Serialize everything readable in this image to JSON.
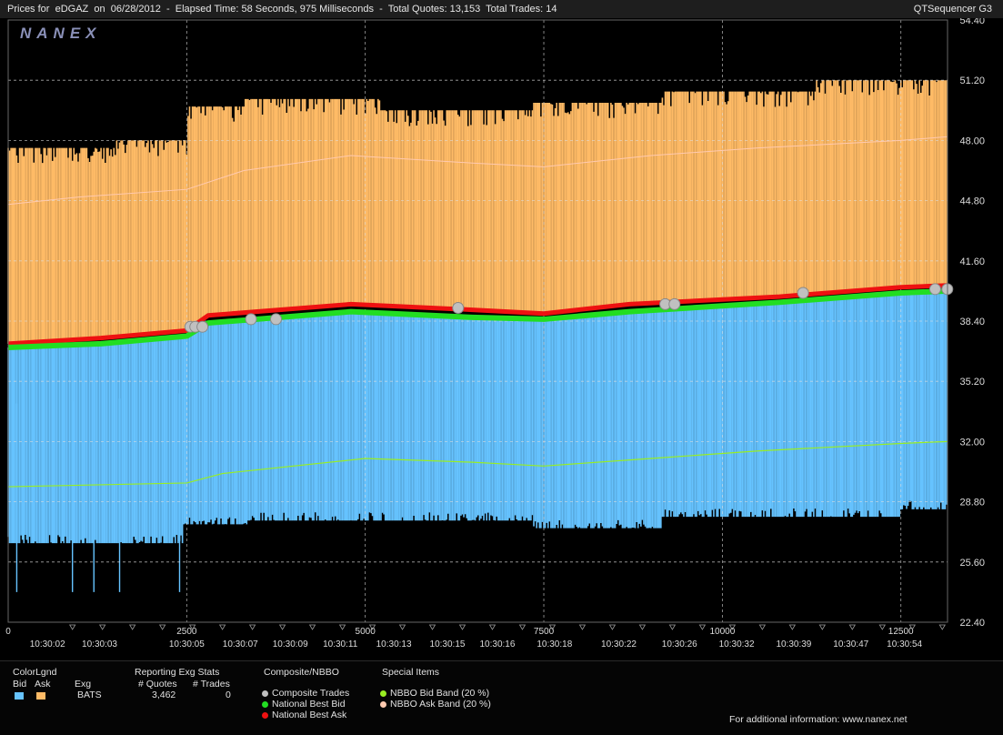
{
  "header": {
    "symbol_prefix": "Prices for",
    "symbol": "eDGAZ",
    "date_prefix": "on",
    "date": "06/28/2012",
    "elapsed": "Elapsed Time: 58 Seconds, 975 Milliseconds",
    "quotes": "Total Quotes: 13,153",
    "trades": "Total Trades: 14",
    "app_name": "QTSequencer G3"
  },
  "chart_data": {
    "type": "bar",
    "logo": "NANEX",
    "ylim": [
      22.4,
      54.4
    ],
    "y_ticks": [
      "54.40",
      "51.20",
      "48.00",
      "44.80",
      "41.60",
      "38.40",
      "35.20",
      "32.00",
      "28.80",
      "25.60",
      "22.40"
    ],
    "x_count_ticks": [
      "0",
      "2500",
      "5000",
      "7500",
      "10000",
      "12500"
    ],
    "x_count_values": [
      0,
      2500,
      5000,
      7500,
      10000,
      12500
    ],
    "x_time_labels": [
      {
        "label": "10:30:02",
        "at": 550
      },
      {
        "label": "10:30:03",
        "at": 1280
      },
      {
        "label": "10:30:05",
        "at": 2500
      },
      {
        "label": "10:30:07",
        "at": 3250
      },
      {
        "label": "10:30:09",
        "at": 3950
      },
      {
        "label": "10:30:11",
        "at": 4650
      },
      {
        "label": "10:30:13",
        "at": 5400
      },
      {
        "label": "10:30:15",
        "at": 6150
      },
      {
        "label": "10:30:16",
        "at": 6850
      },
      {
        "label": "10:30:18",
        "at": 7650
      },
      {
        "label": "10:30:22",
        "at": 8550
      },
      {
        "label": "10:30:26",
        "at": 9400
      },
      {
        "label": "10:30:32",
        "at": 10200
      },
      {
        "label": "10:30:39",
        "at": 11000
      },
      {
        "label": "10:30:47",
        "at": 11800
      },
      {
        "label": "10:30:54",
        "at": 12550
      }
    ],
    "x_max": 13153,
    "series": [
      {
        "name": "Composite Trades",
        "color": "#c0c0c0",
        "x": [
          2550,
          2620,
          2720,
          3400,
          3750,
          6300,
          9200,
          9330,
          11130,
          12980,
          13150
        ],
        "y": [
          38.1,
          38.1,
          38.1,
          38.5,
          38.5,
          39.1,
          39.3,
          39.3,
          39.9,
          40.1,
          40.1
        ]
      },
      {
        "name": "National Best Bid",
        "color": "#22dd22",
        "x": [
          0,
          1300,
          2500,
          2800,
          4800,
          6500,
          7500,
          8700,
          10800,
          12500,
          13153
        ],
        "y": [
          37.0,
          37.2,
          37.6,
          38.3,
          38.9,
          38.6,
          38.5,
          38.9,
          39.4,
          39.9,
          40.0
        ]
      },
      {
        "name": "National Best Ask",
        "color": "#ee1111",
        "x": [
          0,
          1300,
          2500,
          2800,
          4800,
          6500,
          7500,
          8700,
          10800,
          12500,
          13153
        ],
        "y": [
          37.2,
          37.5,
          37.9,
          38.7,
          39.3,
          39.0,
          38.8,
          39.3,
          39.7,
          40.2,
          40.3
        ]
      },
      {
        "name": "NBBO Bid Band (20 %)",
        "color": "#99ee22",
        "x": [
          0,
          2500,
          3000,
          5000,
          6500,
          7500,
          9000,
          10500,
          12500,
          13153
        ],
        "y": [
          29.6,
          29.8,
          30.3,
          31.1,
          30.9,
          30.7,
          31.1,
          31.5,
          31.9,
          32.0
        ]
      },
      {
        "name": "NBBO Ask Band (20 %)",
        "color": "#ffcab0",
        "x": [
          0,
          1000,
          2500,
          3300,
          4800,
          6500,
          7500,
          9000,
          10500,
          12500,
          13153
        ],
        "y": [
          44.6,
          45.0,
          45.4,
          46.4,
          47.2,
          46.8,
          46.6,
          47.2,
          47.6,
          48.0,
          48.2
        ]
      }
    ],
    "bid_bars": {
      "color": "#66c3ff",
      "segments": [
        {
          "x0": 0,
          "x1": 2450,
          "y": 26.6
        },
        {
          "x0": 2450,
          "x1": 3350,
          "y": 27.6
        },
        {
          "x0": 3350,
          "x1": 7350,
          "y": 27.8
        },
        {
          "x0": 7350,
          "x1": 9150,
          "y": 27.4
        },
        {
          "x0": 9150,
          "x1": 12500,
          "y": 28.0
        },
        {
          "x0": 12500,
          "x1": 13153,
          "y": 28.4
        }
      ],
      "spikes": [
        {
          "x": 120,
          "y": 24.0
        },
        {
          "x": 900,
          "y": 24.0
        },
        {
          "x": 1200,
          "y": 24.0
        },
        {
          "x": 1560,
          "y": 24.0
        },
        {
          "x": 2400,
          "y": 24.0
        }
      ]
    },
    "ask_bars": {
      "color": "#ffbb66",
      "segments": [
        {
          "x0": 0,
          "x1": 1500,
          "y": 47.6
        },
        {
          "x0": 1500,
          "x1": 2500,
          "y": 48.0
        },
        {
          "x0": 2500,
          "x1": 3300,
          "y": 49.8
        },
        {
          "x0": 3300,
          "x1": 5200,
          "y": 50.2
        },
        {
          "x0": 5200,
          "x1": 7350,
          "y": 49.6
        },
        {
          "x0": 7350,
          "x1": 9150,
          "y": 50.0
        },
        {
          "x0": 9150,
          "x1": 11300,
          "y": 50.6
        },
        {
          "x0": 11300,
          "x1": 13153,
          "y": 51.2
        }
      ]
    }
  },
  "legend": {
    "color_legend": {
      "title": "ColorLgnd",
      "bid_label": "Bid",
      "ask_label": "Ask",
      "bid_color": "#66c3ff",
      "ask_color": "#ffbb66"
    },
    "exg_stats": {
      "title": "Reporting Exg Stats",
      "col_exg": "Exg",
      "col_quotes": "# Quotes",
      "col_trades": "# Trades",
      "exchange": "BATS",
      "quotes": "3,462",
      "trades": "0"
    },
    "composite": {
      "title": "Composite/NBBO",
      "items": [
        "Composite Trades",
        "National Best Bid",
        "National Best Ask"
      ],
      "colors": [
        "#c0c0c0",
        "#22dd22",
        "#ee1111"
      ]
    },
    "special": {
      "title": "Special Items",
      "items": [
        "NBBO Bid Band (20 %)",
        "NBBO Ask Band (20 %)"
      ],
      "colors": [
        "#99ee22",
        "#ffcab0"
      ]
    },
    "footer": "For additional information: www.nanex.net"
  }
}
